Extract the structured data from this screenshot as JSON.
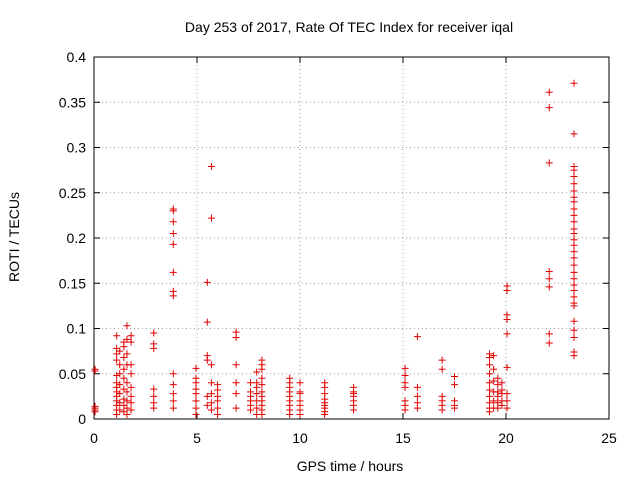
{
  "chart_data": {
    "type": "scatter",
    "title": "Day 253 of 2017, Rate Of TEC Index for receiver iqal",
    "xlabel": "GPS time / hours",
    "ylabel": "ROTI / TECUs",
    "xlim": [
      0,
      25
    ],
    "ylim": [
      0,
      0.4
    ],
    "xticks": [
      "0",
      "5",
      "10",
      "15",
      "20",
      "25"
    ],
    "yticks": [
      "0",
      "0.05",
      "0.1",
      "0.15",
      "0.2",
      "0.25",
      "0.3",
      "0.35",
      "0.4"
    ],
    "grid": true,
    "marker": "+",
    "color": "#e00000",
    "points": [
      [
        0.05,
        0.055
      ],
      [
        0.05,
        0.053
      ],
      [
        0.05,
        0.014
      ],
      [
        0.05,
        0.012
      ],
      [
        0.05,
        0.01
      ],
      [
        0.05,
        0.008
      ],
      [
        1.1,
        0.092
      ],
      [
        1.1,
        0.078
      ],
      [
        1.1,
        0.072
      ],
      [
        1.1,
        0.065
      ],
      [
        1.1,
        0.048
      ],
      [
        1.1,
        0.04
      ],
      [
        1.1,
        0.035
      ],
      [
        1.1,
        0.03
      ],
      [
        1.1,
        0.025
      ],
      [
        1.1,
        0.02
      ],
      [
        1.1,
        0.015
      ],
      [
        1.1,
        0.01
      ],
      [
        1.1,
        0.005
      ],
      [
        1.25,
        0.075
      ],
      [
        1.25,
        0.06
      ],
      [
        1.25,
        0.05
      ],
      [
        1.25,
        0.038
      ],
      [
        1.25,
        0.028
      ],
      [
        1.25,
        0.018
      ],
      [
        1.25,
        0.01
      ],
      [
        1.45,
        0.085
      ],
      [
        1.45,
        0.08
      ],
      [
        1.45,
        0.068
      ],
      [
        1.45,
        0.055
      ],
      [
        1.45,
        0.045
      ],
      [
        1.45,
        0.033
      ],
      [
        1.45,
        0.022
      ],
      [
        1.45,
        0.015
      ],
      [
        1.45,
        0.008
      ],
      [
        1.6,
        0.103
      ],
      [
        1.6,
        0.088
      ],
      [
        1.6,
        0.072
      ],
      [
        1.6,
        0.06
      ],
      [
        1.6,
        0.04
      ],
      [
        1.6,
        0.03
      ],
      [
        1.6,
        0.02
      ],
      [
        1.6,
        0.012
      ],
      [
        1.6,
        0.005
      ],
      [
        1.8,
        0.092
      ],
      [
        1.8,
        0.085
      ],
      [
        1.8,
        0.06
      ],
      [
        1.8,
        0.05
      ],
      [
        1.8,
        0.035
      ],
      [
        1.8,
        0.025
      ],
      [
        1.8,
        0.018
      ],
      [
        1.8,
        0.01
      ],
      [
        2.9,
        0.095
      ],
      [
        2.9,
        0.083
      ],
      [
        2.9,
        0.078
      ],
      [
        2.9,
        0.033
      ],
      [
        2.9,
        0.025
      ],
      [
        2.9,
        0.018
      ],
      [
        2.9,
        0.012
      ],
      [
        3.85,
        0.232
      ],
      [
        3.85,
        0.23
      ],
      [
        3.85,
        0.218
      ],
      [
        3.85,
        0.205
      ],
      [
        3.85,
        0.193
      ],
      [
        3.85,
        0.162
      ],
      [
        3.85,
        0.141
      ],
      [
        3.85,
        0.136
      ],
      [
        3.85,
        0.05
      ],
      [
        3.85,
        0.038
      ],
      [
        3.85,
        0.028
      ],
      [
        3.85,
        0.02
      ],
      [
        3.85,
        0.012
      ],
      [
        4.95,
        0.056
      ],
      [
        4.95,
        0.045
      ],
      [
        4.95,
        0.04
      ],
      [
        4.95,
        0.033
      ],
      [
        4.95,
        0.028
      ],
      [
        4.95,
        0.02
      ],
      [
        4.95,
        0.012
      ],
      [
        4.95,
        0.005
      ],
      [
        5.5,
        0.151
      ],
      [
        5.5,
        0.107
      ],
      [
        5.5,
        0.07
      ],
      [
        5.5,
        0.065
      ],
      [
        5.5,
        0.025
      ],
      [
        5.5,
        0.015
      ],
      [
        5.7,
        0.279
      ],
      [
        5.7,
        0.222
      ],
      [
        5.7,
        0.06
      ],
      [
        5.7,
        0.04
      ],
      [
        5.7,
        0.028
      ],
      [
        5.7,
        0.018
      ],
      [
        5.7,
        0.01
      ],
      [
        6.0,
        0.038
      ],
      [
        6.0,
        0.032
      ],
      [
        6.0,
        0.025
      ],
      [
        6.0,
        0.02
      ],
      [
        6.0,
        0.012
      ],
      [
        6.0,
        0.005
      ],
      [
        6.9,
        0.096
      ],
      [
        6.9,
        0.09
      ],
      [
        6.9,
        0.06
      ],
      [
        6.9,
        0.04
      ],
      [
        6.9,
        0.028
      ],
      [
        6.9,
        0.012
      ],
      [
        7.6,
        0.04
      ],
      [
        7.6,
        0.03
      ],
      [
        7.6,
        0.025
      ],
      [
        7.6,
        0.02
      ],
      [
        7.6,
        0.015
      ],
      [
        7.6,
        0.01
      ],
      [
        7.9,
        0.052
      ],
      [
        7.9,
        0.04
      ],
      [
        7.9,
        0.035
      ],
      [
        7.9,
        0.028
      ],
      [
        7.9,
        0.02
      ],
      [
        7.9,
        0.012
      ],
      [
        7.9,
        0.005
      ],
      [
        8.15,
        0.065
      ],
      [
        8.15,
        0.06
      ],
      [
        8.15,
        0.055
      ],
      [
        8.15,
        0.045
      ],
      [
        8.15,
        0.038
      ],
      [
        8.15,
        0.03
      ],
      [
        8.15,
        0.025
      ],
      [
        8.15,
        0.02
      ],
      [
        8.15,
        0.015
      ],
      [
        8.15,
        0.01
      ],
      [
        8.15,
        0.005
      ],
      [
        9.5,
        0.045
      ],
      [
        9.5,
        0.04
      ],
      [
        9.5,
        0.035
      ],
      [
        9.5,
        0.03
      ],
      [
        9.5,
        0.025
      ],
      [
        9.5,
        0.02
      ],
      [
        9.5,
        0.015
      ],
      [
        9.5,
        0.01
      ],
      [
        9.5,
        0.005
      ],
      [
        10.0,
        0.04
      ],
      [
        10.0,
        0.03
      ],
      [
        10.0,
        0.028
      ],
      [
        10.0,
        0.02
      ],
      [
        10.0,
        0.015
      ],
      [
        10.0,
        0.01
      ],
      [
        10.0,
        0.005
      ],
      [
        11.2,
        0.04
      ],
      [
        11.2,
        0.035
      ],
      [
        11.2,
        0.028
      ],
      [
        11.2,
        0.022
      ],
      [
        11.2,
        0.018
      ],
      [
        11.2,
        0.015
      ],
      [
        11.2,
        0.012
      ],
      [
        11.2,
        0.008
      ],
      [
        11.2,
        0.005
      ],
      [
        12.6,
        0.035
      ],
      [
        12.6,
        0.03
      ],
      [
        12.6,
        0.028
      ],
      [
        12.6,
        0.025
      ],
      [
        12.6,
        0.02
      ],
      [
        12.6,
        0.015
      ],
      [
        12.6,
        0.01
      ],
      [
        15.1,
        0.056
      ],
      [
        15.1,
        0.048
      ],
      [
        15.1,
        0.04
      ],
      [
        15.1,
        0.035
      ],
      [
        15.1,
        0.02
      ],
      [
        15.1,
        0.015
      ],
      [
        15.1,
        0.01
      ],
      [
        15.7,
        0.091
      ],
      [
        15.7,
        0.035
      ],
      [
        15.7,
        0.025
      ],
      [
        15.7,
        0.018
      ],
      [
        15.7,
        0.012
      ],
      [
        16.9,
        0.065
      ],
      [
        16.9,
        0.055
      ],
      [
        16.9,
        0.025
      ],
      [
        16.9,
        0.02
      ],
      [
        16.9,
        0.015
      ],
      [
        16.9,
        0.01
      ],
      [
        17.5,
        0.047
      ],
      [
        17.5,
        0.038
      ],
      [
        17.5,
        0.02
      ],
      [
        17.5,
        0.015
      ],
      [
        17.5,
        0.012
      ],
      [
        19.2,
        0.072
      ],
      [
        19.2,
        0.068
      ],
      [
        19.2,
        0.06
      ],
      [
        19.2,
        0.05
      ],
      [
        19.2,
        0.04
      ],
      [
        19.2,
        0.032
      ],
      [
        19.2,
        0.025
      ],
      [
        19.2,
        0.018
      ],
      [
        19.2,
        0.012
      ],
      [
        19.2,
        0.008
      ],
      [
        19.4,
        0.07
      ],
      [
        19.4,
        0.055
      ],
      [
        19.4,
        0.042
      ],
      [
        19.4,
        0.03
      ],
      [
        19.4,
        0.02
      ],
      [
        19.4,
        0.012
      ],
      [
        19.6,
        0.045
      ],
      [
        19.6,
        0.038
      ],
      [
        19.6,
        0.03
      ],
      [
        19.6,
        0.025
      ],
      [
        19.6,
        0.018
      ],
      [
        19.6,
        0.012
      ],
      [
        19.8,
        0.04
      ],
      [
        19.8,
        0.032
      ],
      [
        19.8,
        0.028
      ],
      [
        19.8,
        0.02
      ],
      [
        19.8,
        0.015
      ],
      [
        20.05,
        0.147
      ],
      [
        20.05,
        0.142
      ],
      [
        20.05,
        0.115
      ],
      [
        20.05,
        0.11
      ],
      [
        20.05,
        0.094
      ],
      [
        20.05,
        0.057
      ],
      [
        20.05,
        0.028
      ],
      [
        20.05,
        0.02
      ],
      [
        20.05,
        0.012
      ],
      [
        22.1,
        0.361
      ],
      [
        22.1,
        0.344
      ],
      [
        22.1,
        0.283
      ],
      [
        22.1,
        0.163
      ],
      [
        22.1,
        0.155
      ],
      [
        22.1,
        0.146
      ],
      [
        22.1,
        0.094
      ],
      [
        22.1,
        0.084
      ],
      [
        23.3,
        0.371
      ],
      [
        23.3,
        0.315
      ],
      [
        23.3,
        0.279
      ],
      [
        23.3,
        0.275
      ],
      [
        23.3,
        0.268
      ],
      [
        23.3,
        0.26
      ],
      [
        23.3,
        0.252
      ],
      [
        23.3,
        0.245
      ],
      [
        23.3,
        0.24
      ],
      [
        23.3,
        0.232
      ],
      [
        23.3,
        0.225
      ],
      [
        23.3,
        0.218
      ],
      [
        23.3,
        0.21
      ],
      [
        23.3,
        0.205
      ],
      [
        23.3,
        0.198
      ],
      [
        23.3,
        0.192
      ],
      [
        23.3,
        0.185
      ],
      [
        23.3,
        0.178
      ],
      [
        23.3,
        0.17
      ],
      [
        23.3,
        0.162
      ],
      [
        23.3,
        0.155
      ],
      [
        23.3,
        0.148
      ],
      [
        23.3,
        0.142
      ],
      [
        23.3,
        0.135
      ],
      [
        23.3,
        0.128
      ],
      [
        23.3,
        0.125
      ],
      [
        23.3,
        0.108
      ],
      [
        23.3,
        0.098
      ],
      [
        23.3,
        0.09
      ],
      [
        23.3,
        0.074
      ],
      [
        23.3,
        0.07
      ]
    ]
  }
}
